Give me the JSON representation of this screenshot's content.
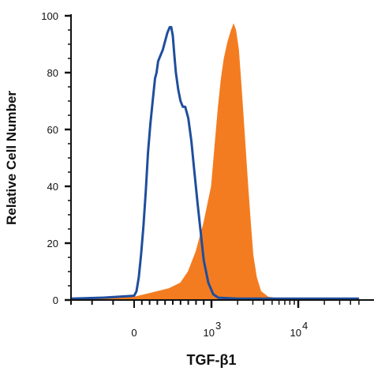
{
  "chart_data": {
    "type": "area",
    "xlabel": "TGF-β1",
    "ylabel": "Relative Cell Number",
    "x_scale": "biexponential",
    "xlim": [
      -300,
      50000
    ],
    "ylim": [
      0,
      100
    ],
    "y_ticks": [
      "0",
      "20",
      "40",
      "60",
      "80",
      "100"
    ],
    "x_tick_labels": [
      {
        "value": 0,
        "base": "0",
        "exp": ""
      },
      {
        "value": 1000,
        "base": "10",
        "exp": "3"
      },
      {
        "value": 10000,
        "base": "10",
        "exp": "4"
      }
    ],
    "grid": false,
    "legend": "none",
    "series": [
      {
        "style": "outline",
        "color": "#1f4e9c",
        "points": [
          [
            -300,
            0.5
          ],
          [
            -150,
            0.8
          ],
          [
            0,
            1.5
          ],
          [
            30,
            3
          ],
          [
            60,
            8
          ],
          [
            90,
            16
          ],
          [
            120,
            26
          ],
          [
            150,
            38
          ],
          [
            180,
            52
          ],
          [
            210,
            62
          ],
          [
            240,
            70
          ],
          [
            270,
            78
          ],
          [
            290,
            80
          ],
          [
            310,
            84
          ],
          [
            340,
            86
          ],
          [
            370,
            88
          ],
          [
            400,
            91
          ],
          [
            430,
            94
          ],
          [
            460,
            96
          ],
          [
            480,
            96
          ],
          [
            500,
            93
          ],
          [
            520,
            86
          ],
          [
            540,
            80
          ],
          [
            570,
            74
          ],
          [
            600,
            70
          ],
          [
            630,
            68
          ],
          [
            660,
            68
          ],
          [
            700,
            64
          ],
          [
            740,
            56
          ],
          [
            780,
            45
          ],
          [
            820,
            34
          ],
          [
            860,
            24
          ],
          [
            900,
            14
          ],
          [
            960,
            6
          ],
          [
            1050,
            2
          ],
          [
            1200,
            0.8
          ],
          [
            2000,
            0.5
          ],
          [
            10000,
            0.5
          ],
          [
            50000,
            0.5
          ]
        ]
      },
      {
        "style": "filled",
        "color": "#f47c20",
        "points": [
          [
            -300,
            0.5
          ],
          [
            0,
            1
          ],
          [
            150,
            2
          ],
          [
            300,
            3
          ],
          [
            450,
            4
          ],
          [
            600,
            6
          ],
          [
            700,
            10
          ],
          [
            800,
            17
          ],
          [
            900,
            27
          ],
          [
            1000,
            40
          ],
          [
            1100,
            55
          ],
          [
            1200,
            68
          ],
          [
            1300,
            78
          ],
          [
            1400,
            85
          ],
          [
            1550,
            91
          ],
          [
            1700,
            95
          ],
          [
            1800,
            97
          ],
          [
            1900,
            95
          ],
          [
            2050,
            88
          ],
          [
            2200,
            75
          ],
          [
            2400,
            58
          ],
          [
            2600,
            42
          ],
          [
            2800,
            28
          ],
          [
            3000,
            16
          ],
          [
            3300,
            8
          ],
          [
            3700,
            3
          ],
          [
            4500,
            1
          ],
          [
            6000,
            0.5
          ],
          [
            50000,
            0.5
          ]
        ]
      }
    ]
  }
}
